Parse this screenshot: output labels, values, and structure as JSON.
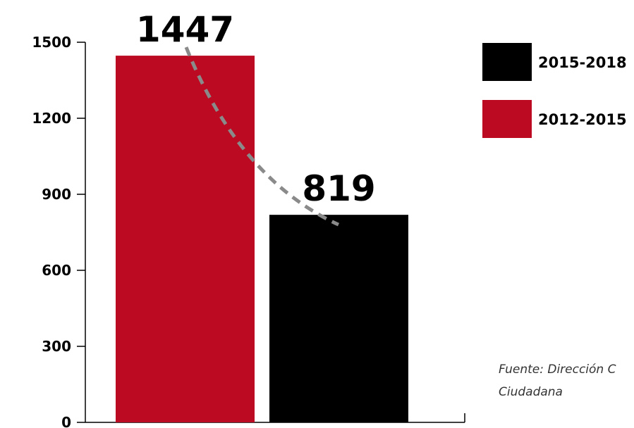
{
  "chart_data": {
    "type": "bar",
    "categories": [
      "2012-2015",
      "2015-2018"
    ],
    "values": [
      1447,
      819
    ],
    "colors": [
      "#bb0a21",
      "#000000"
    ],
    "yticks": [
      0,
      300,
      600,
      900,
      1200,
      1500
    ],
    "ylim": [
      0,
      1500
    ],
    "data_labels": [
      "1447",
      "819"
    ],
    "trend_line": {
      "style": "dashed",
      "color": "#8a8a8a"
    },
    "legend": {
      "placement": "top-right",
      "entries": [
        {
          "label": "2015-2018",
          "color": "#000000"
        },
        {
          "label": "2012-2015",
          "color": "#bb0a21"
        }
      ]
    },
    "grid": false
  },
  "source": {
    "line1": "Fuente: Dirección C",
    "line2": "Ciudadana"
  }
}
